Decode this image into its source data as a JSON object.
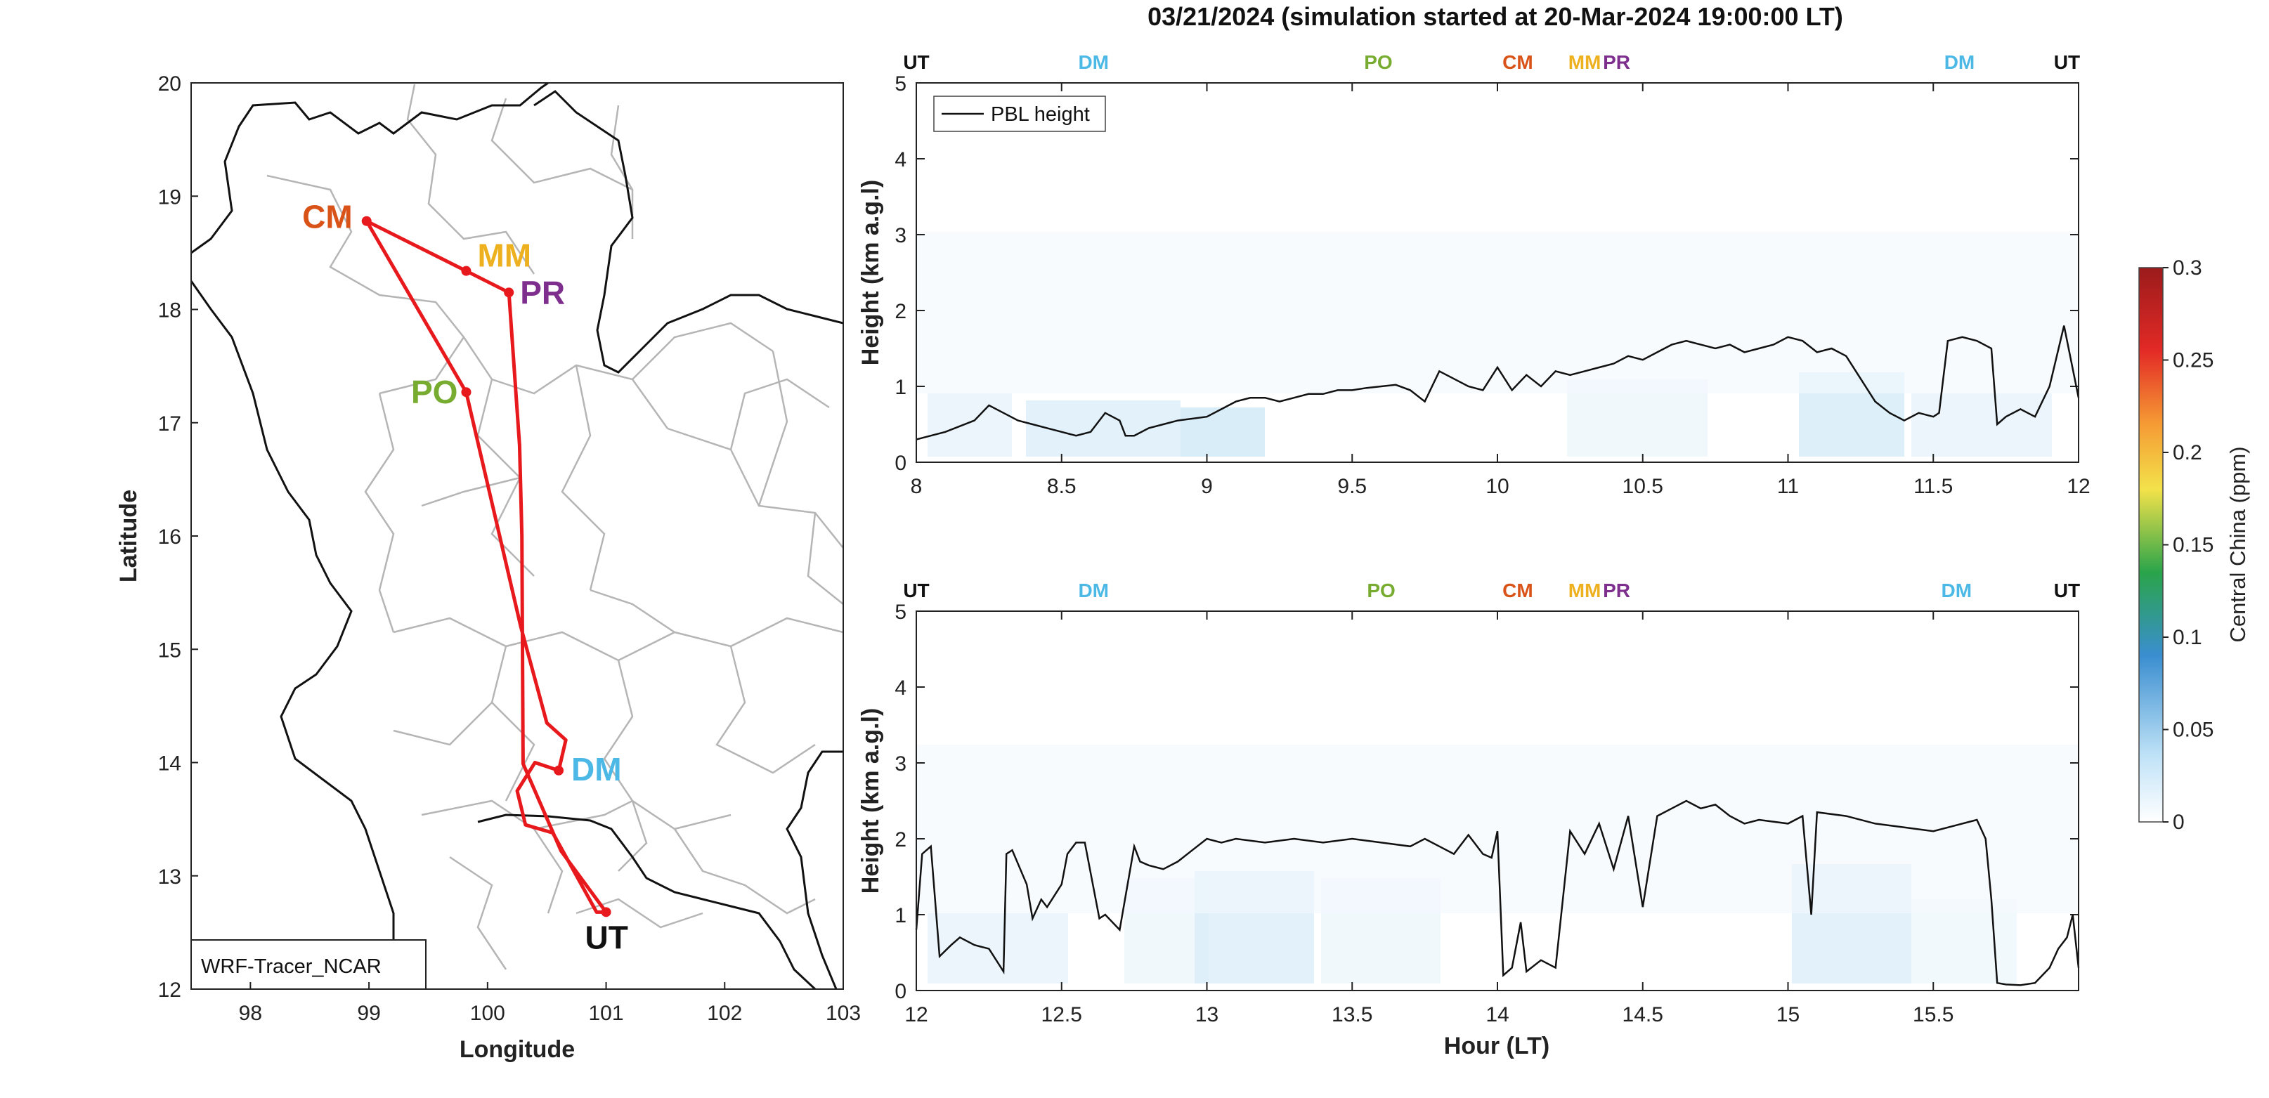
{
  "title": "03/21/2024 (simulation started at 20-Mar-2024 19:00:00 LT)",
  "colors": {
    "route": "#e8191c",
    "pbl": "#111111",
    "border": "#111111",
    "province": "#b5b5b5",
    "UT": "#111111",
    "DM": "#4cb8e6",
    "PO": "#77ac30",
    "CM": "#d95319",
    "MM": "#edb120",
    "PR": "#7e2f8e"
  },
  "map": {
    "xlabel": "Longitude",
    "ylabel": "Latitude",
    "xlim": [
      97.5,
      103
    ],
    "ylim": [
      12,
      20
    ],
    "xticks": [
      "98",
      "99",
      "100",
      "101",
      "102",
      "103"
    ],
    "yticks": [
      "12",
      "13",
      "14",
      "15",
      "16",
      "17",
      "18",
      "19",
      "20"
    ],
    "model_label": "WRF-Tracer_NCAR",
    "sites": [
      {
        "name": "CM",
        "lon": 98.98,
        "lat": 18.78
      },
      {
        "name": "MM",
        "lon": 99.82,
        "lat": 18.34
      },
      {
        "name": "PR",
        "lon": 100.18,
        "lat": 18.15
      },
      {
        "name": "PO",
        "lon": 99.82,
        "lat": 17.27
      },
      {
        "name": "DM",
        "lon": 100.6,
        "lat": 13.93
      },
      {
        "name": "UT",
        "lon": 101.0,
        "lat": 12.68
      }
    ],
    "route": [
      [
        101.0,
        12.68
      ],
      [
        100.62,
        13.22
      ],
      [
        100.3,
        13.99
      ],
      [
        100.29,
        16.0
      ],
      [
        100.27,
        16.8
      ],
      [
        100.18,
        18.15
      ],
      [
        99.82,
        18.34
      ],
      [
        98.98,
        18.78
      ],
      [
        99.82,
        17.27
      ],
      [
        100.28,
        15.2
      ],
      [
        100.5,
        14.35
      ],
      [
        100.66,
        14.2
      ],
      [
        100.6,
        13.93
      ],
      [
        100.4,
        14.0
      ],
      [
        100.25,
        13.75
      ],
      [
        100.32,
        13.45
      ],
      [
        100.55,
        13.38
      ],
      [
        100.92,
        12.68
      ],
      [
        101.0,
        12.68
      ]
    ]
  },
  "colorbar": {
    "label": "Central China (ppm)",
    "range": [
      0,
      0.3
    ],
    "ticks": [
      "0",
      "0.05",
      "0.1",
      "0.15",
      "0.2",
      "0.25",
      "0.3"
    ]
  },
  "chart_data": [
    {
      "type": "line",
      "ylabel": "Height (km a.g.l)",
      "xlim": [
        8,
        12
      ],
      "ylim": [
        0,
        5
      ],
      "xticks": [
        "8",
        "8.5",
        "9",
        "9.5",
        "10",
        "10.5",
        "11",
        "11.5",
        "12"
      ],
      "yticks": [
        "0",
        "1",
        "2",
        "3",
        "4",
        "5"
      ],
      "legend": "PBL height",
      "legend_location": "top-left",
      "site_markers": [
        {
          "name": "UT",
          "x": 8.0
        },
        {
          "name": "DM",
          "x": 8.61
        },
        {
          "name": "PO",
          "x": 9.59
        },
        {
          "name": "CM",
          "x": 10.07
        },
        {
          "name": "MM",
          "x": 10.3
        },
        {
          "name": "PR",
          "x": 10.41
        },
        {
          "name": "DM",
          "x": 11.59
        },
        {
          "name": "UT",
          "x": 11.96
        }
      ],
      "series": [
        {
          "name": "PBL height",
          "x": [
            8.0,
            8.1,
            8.2,
            8.25,
            8.3,
            8.35,
            8.4,
            8.45,
            8.5,
            8.55,
            8.6,
            8.65,
            8.7,
            8.72,
            8.75,
            8.8,
            8.85,
            8.9,
            9.0,
            9.05,
            9.1,
            9.15,
            9.2,
            9.25,
            9.3,
            9.35,
            9.4,
            9.45,
            9.5,
            9.55,
            9.6,
            9.65,
            9.7,
            9.75,
            9.8,
            9.85,
            9.9,
            9.95,
            10.0,
            10.05,
            10.1,
            10.15,
            10.2,
            10.25,
            10.3,
            10.35,
            10.4,
            10.45,
            10.5,
            10.55,
            10.6,
            10.65,
            10.7,
            10.75,
            10.8,
            10.85,
            10.9,
            10.95,
            11.0,
            11.05,
            11.1,
            11.15,
            11.2,
            11.25,
            11.3,
            11.35,
            11.4,
            11.45,
            11.5,
            11.52,
            11.55,
            11.6,
            11.65,
            11.7,
            11.72,
            11.75,
            11.8,
            11.85,
            11.9,
            11.95,
            12.0
          ],
          "values": [
            0.3,
            0.4,
            0.55,
            0.75,
            0.65,
            0.55,
            0.5,
            0.45,
            0.4,
            0.35,
            0.4,
            0.65,
            0.55,
            0.35,
            0.35,
            0.45,
            0.5,
            0.55,
            0.6,
            0.7,
            0.8,
            0.85,
            0.85,
            0.8,
            0.85,
            0.9,
            0.9,
            0.95,
            0.95,
            0.98,
            1.0,
            1.02,
            0.95,
            0.8,
            1.2,
            1.1,
            1.0,
            0.95,
            1.25,
            0.95,
            1.15,
            1.0,
            1.2,
            1.15,
            1.2,
            1.25,
            1.3,
            1.4,
            1.35,
            1.45,
            1.55,
            1.6,
            1.55,
            1.5,
            1.55,
            1.45,
            1.5,
            1.55,
            1.65,
            1.6,
            1.45,
            1.5,
            1.4,
            1.1,
            0.8,
            0.65,
            0.55,
            0.65,
            0.6,
            0.65,
            1.6,
            1.65,
            1.6,
            1.5,
            0.5,
            0.6,
            0.7,
            0.6,
            1.0,
            1.8,
            0.85
          ]
        }
      ]
    },
    {
      "type": "line",
      "xlabel": "Hour (LT)",
      "ylabel": "Height (km a.g.l)",
      "xlim": [
        12,
        16
      ],
      "ylim": [
        0,
        5
      ],
      "xticks": [
        "12",
        "12.5",
        "13",
        "13.5",
        "14",
        "14.5",
        "15",
        "15.5"
      ],
      "yticks": [
        "0",
        "1",
        "2",
        "3",
        "4",
        "5"
      ],
      "site_markers": [
        {
          "name": "UT",
          "x": 12.0
        },
        {
          "name": "DM",
          "x": 12.61
        },
        {
          "name": "PO",
          "x": 13.6
        },
        {
          "name": "CM",
          "x": 14.07
        },
        {
          "name": "MM",
          "x": 14.3
        },
        {
          "name": "PR",
          "x": 14.41
        },
        {
          "name": "DM",
          "x": 15.58
        },
        {
          "name": "UT",
          "x": 15.96
        }
      ],
      "series": [
        {
          "name": "PBL height",
          "x": [
            12.0,
            12.02,
            12.05,
            12.08,
            12.12,
            12.15,
            12.2,
            12.25,
            12.3,
            12.31,
            12.33,
            12.38,
            12.4,
            12.43,
            12.45,
            12.5,
            12.52,
            12.55,
            12.58,
            12.63,
            12.65,
            12.7,
            12.75,
            12.77,
            12.8,
            12.85,
            12.9,
            12.95,
            13.0,
            13.05,
            13.1,
            13.2,
            13.3,
            13.4,
            13.5,
            13.6,
            13.7,
            13.75,
            13.8,
            13.85,
            13.9,
            13.95,
            13.98,
            14.0,
            14.02,
            14.05,
            14.08,
            14.1,
            14.15,
            14.2,
            14.25,
            14.3,
            14.35,
            14.4,
            14.45,
            14.5,
            14.55,
            14.6,
            14.65,
            14.7,
            14.75,
            14.8,
            14.85,
            14.9,
            15.0,
            15.05,
            15.08,
            15.1,
            15.2,
            15.3,
            15.4,
            15.5,
            15.6,
            15.65,
            15.68,
            15.7,
            15.72,
            15.75,
            15.8,
            15.85,
            15.9,
            15.93,
            15.96,
            15.98,
            16.0
          ],
          "values": [
            0.8,
            1.8,
            1.9,
            0.45,
            0.6,
            0.7,
            0.6,
            0.55,
            0.25,
            1.8,
            1.85,
            1.4,
            0.95,
            1.2,
            1.1,
            1.4,
            1.8,
            1.95,
            1.95,
            0.95,
            1.0,
            0.8,
            1.9,
            1.7,
            1.65,
            1.6,
            1.7,
            1.85,
            2.0,
            1.95,
            2.0,
            1.95,
            2.0,
            1.95,
            2.0,
            1.95,
            1.9,
            2.0,
            1.9,
            1.8,
            2.05,
            1.8,
            1.75,
            2.1,
            0.2,
            0.3,
            0.9,
            0.25,
            0.4,
            0.3,
            2.1,
            1.8,
            2.2,
            1.6,
            2.3,
            1.1,
            2.3,
            2.4,
            2.5,
            2.4,
            2.45,
            2.3,
            2.2,
            2.25,
            2.2,
            2.3,
            1.0,
            2.35,
            2.3,
            2.2,
            2.15,
            2.1,
            2.2,
            2.25,
            2.0,
            1.2,
            0.1,
            0.08,
            0.07,
            0.1,
            0.3,
            0.55,
            0.7,
            1.0,
            0.3
          ]
        }
      ]
    }
  ]
}
